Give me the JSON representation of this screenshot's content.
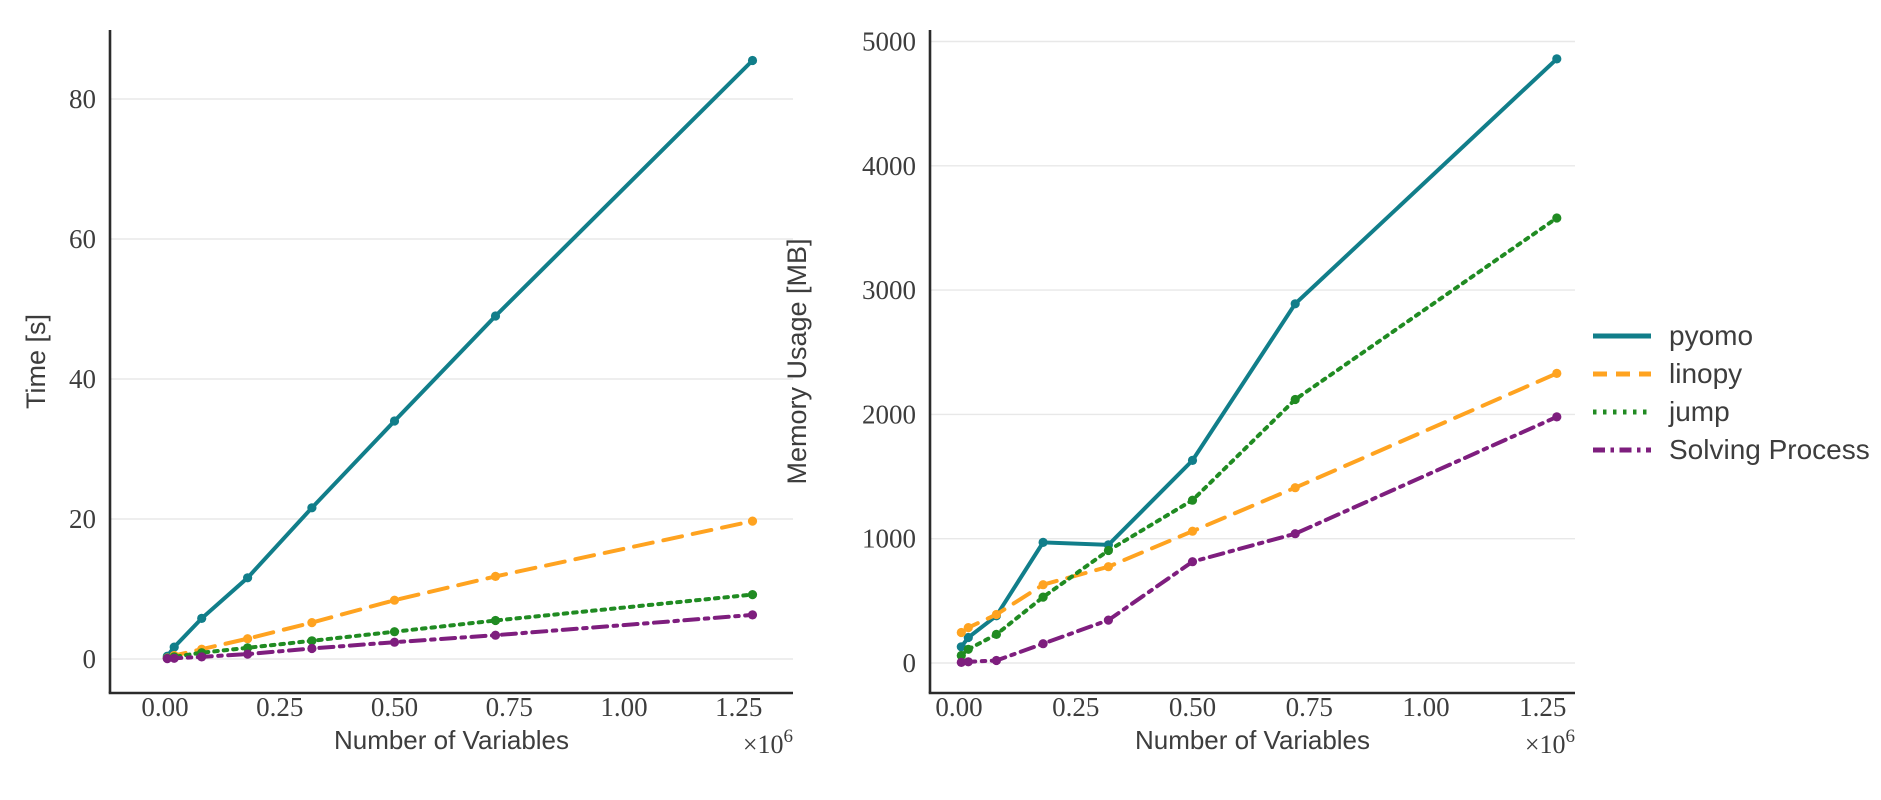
{
  "figure": {
    "background": "#ffffff",
    "text_color": "#3d3d3d",
    "grid_color": "#e8e8e8",
    "spine_color": "#2b2b2b"
  },
  "legend": {
    "items": [
      {
        "label": "pyomo",
        "color": "#117E8A",
        "dash": "solid"
      },
      {
        "label": "linopy",
        "color": "#FFA320",
        "dash": "dashed"
      },
      {
        "label": "jump",
        "color": "#208B22",
        "dash": "dotted"
      },
      {
        "label": "Solving Process",
        "color": "#7E1E7E",
        "dash": "dashdot"
      }
    ]
  },
  "chart_data": [
    {
      "type": "line",
      "title": "",
      "xlabel": "Number of Variables",
      "ylabel": "Time [s]",
      "x_unit_multiplier": "1e6",
      "x_offset_base": "×10",
      "x_offset_exp": "6",
      "x": [
        0.005,
        0.02,
        0.08,
        0.18,
        0.32,
        0.5,
        0.72,
        1.28
      ],
      "x_tick_values": [
        0,
        0.25,
        0.5,
        0.75,
        1.0,
        1.25
      ],
      "x_tick_labels": [
        "0.00",
        "0.25",
        "0.50",
        "0.75",
        "1.00",
        "1.25"
      ],
      "y_tick_values": [
        0,
        20,
        40,
        60,
        80
      ],
      "y_tick_labels": [
        "0",
        "20",
        "40",
        "60",
        "80"
      ],
      "xlim": [
        0,
        1.37
      ],
      "ylim": [
        0,
        90
      ],
      "grid": "horizontal",
      "legend_position": "outside-right-of-second-chart",
      "series": [
        {
          "name": "pyomo",
          "values": [
            0.4,
            1.7,
            5.8,
            11.6,
            21.6,
            34.0,
            49.0,
            85.5
          ]
        },
        {
          "name": "linopy",
          "values": [
            0.15,
            0.5,
            1.4,
            2.9,
            5.2,
            8.4,
            11.8,
            19.7
          ]
        },
        {
          "name": "jump",
          "values": [
            0.1,
            0.3,
            0.9,
            1.6,
            2.6,
            3.9,
            5.5,
            9.2
          ]
        },
        {
          "name": "Solving Process",
          "values": [
            0.05,
            0.1,
            0.3,
            0.7,
            1.5,
            2.4,
            3.4,
            6.3
          ]
        }
      ]
    },
    {
      "type": "line",
      "title": "",
      "xlabel": "Number of Variables",
      "ylabel": "Memory Usage [MB]",
      "x_unit_multiplier": "1e6",
      "x_offset_base": "×10",
      "x_offset_exp": "6",
      "x": [
        0.005,
        0.02,
        0.08,
        0.18,
        0.32,
        0.5,
        0.72,
        1.28
      ],
      "x_tick_values": [
        0,
        0.25,
        0.5,
        0.75,
        1.0,
        1.25
      ],
      "x_tick_labels": [
        "0.00",
        "0.25",
        "0.50",
        "0.75",
        "1.00",
        "1.25"
      ],
      "y_tick_values": [
        0,
        1000,
        2000,
        3000,
        4000,
        5000
      ],
      "y_tick_labels": [
        "0",
        "1000",
        "2000",
        "3000",
        "4000",
        "5000"
      ],
      "xlim": [
        0,
        1.32
      ],
      "ylim": [
        0,
        5100
      ],
      "grid": "horizontal",
      "series": [
        {
          "name": "pyomo",
          "values": [
            130,
            205,
            380,
            970,
            950,
            1630,
            2890,
            4860
          ]
        },
        {
          "name": "linopy",
          "values": [
            245,
            285,
            390,
            630,
            775,
            1060,
            1410,
            2330
          ]
        },
        {
          "name": "jump",
          "values": [
            60,
            110,
            230,
            530,
            905,
            1310,
            2120,
            3580
          ]
        },
        {
          "name": "Solving Process",
          "values": [
            5,
            10,
            20,
            155,
            345,
            815,
            1040,
            1980
          ]
        }
      ]
    }
  ]
}
